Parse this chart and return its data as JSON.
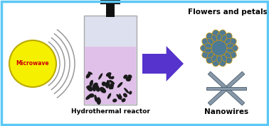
{
  "bg_color": "#ffffff",
  "border_color": "#5bc8f5",
  "title_flowers": "Flowers and petals",
  "title_nanowires": "Nanowires",
  "label_reactor": "Hydrothermal reactor",
  "label_microwave": "Microwave",
  "flower_color": "#4e7a96",
  "flower_outline": "#c8960c",
  "wire_color": "#8899aa",
  "wire_dark": "#556677",
  "arrow_color": "#5533cc",
  "microwave_yellow": "#f5f000",
  "microwave_border": "#bbaa00",
  "microwave_text": "#cc0000",
  "reactor_body_top": "#dde0ee",
  "reactor_liquid": "#e0c0e8",
  "reactor_cap": "#111111",
  "wave_color": "#999999",
  "particle_color": "#1a1a1a",
  "figw": 3.78,
  "figh": 1.78,
  "dpi": 100
}
